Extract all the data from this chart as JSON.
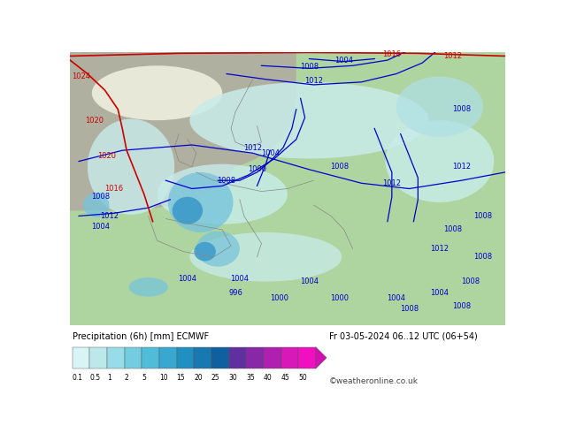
{
  "title_left": "Precipitation (6h) [mm] ECMWF",
  "title_right": "Fr 03-05-2024 06..12 UTC (06+54)",
  "credit": "©weatheronline.co.uk",
  "colorbar_values": [
    0.1,
    0.5,
    1,
    2,
    5,
    10,
    15,
    20,
    25,
    30,
    35,
    40,
    45,
    50
  ],
  "colorbar_colors": [
    "#d8f4f4",
    "#bce8ec",
    "#98dce8",
    "#74cce0",
    "#50bcd8",
    "#38a8d0",
    "#2090c0",
    "#1878b0",
    "#1060a0",
    "#6030a0",
    "#8828a8",
    "#b020b0",
    "#d818b8",
    "#f010c0"
  ],
  "map_bg": "#aed4a0",
  "gray_land": "#b0b0a0",
  "white_land": "#d8d8c8",
  "bottom_bg": "#ffffff",
  "slp_blue": "#0000cc",
  "slp_red": "#cc0000",
  "border_color": "#888888",
  "fig_width": 6.34,
  "fig_height": 4.9,
  "prec_light1": "#c8ecea",
  "prec_light2": "#b0e0e4",
  "prec_med": "#78c4dc",
  "prec_strong": "#3898c8",
  "prec_deep": "#1870b0"
}
